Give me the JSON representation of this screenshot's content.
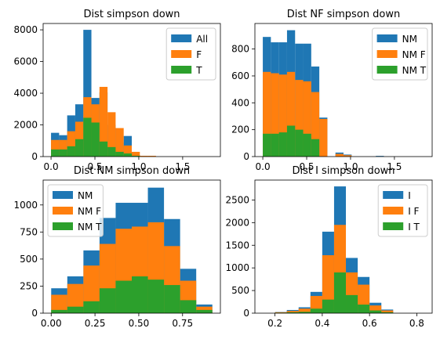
{
  "chart_data": [
    {
      "type": "bar",
      "title": "Dist simpson down",
      "xlim": [
        -0.09,
        1.93
      ],
      "ylim": [
        0,
        8400
      ],
      "xticks": [
        0.0,
        0.5,
        1.0,
        1.5
      ],
      "xtick_labels": [
        "0.0",
        "0.5",
        "1.0",
        "1.5"
      ],
      "yticks": [
        0,
        2000,
        4000,
        6000,
        8000
      ],
      "ytick_labels": [
        "0",
        "2000",
        "4000",
        "6000",
        "8000"
      ],
      "legend_position": "top-right",
      "bin_edges": [
        0.0,
        0.092,
        0.184,
        0.276,
        0.368,
        0.46,
        0.552,
        0.644,
        0.736,
        0.828,
        0.92,
        1.012,
        1.104,
        1.196,
        1.288,
        1.38,
        1.472,
        1.564,
        1.656,
        1.748,
        1.84
      ],
      "series": [
        {
          "name": "All",
          "color": "#1f77b4",
          "values": [
            1500,
            1350,
            2600,
            3300,
            8000,
            3700,
            4050,
            2000,
            900,
            1300,
            100,
            0,
            0,
            0,
            0,
            0,
            0,
            0,
            0,
            0
          ]
        },
        {
          "name": "F",
          "color": "#ff7f0e",
          "values": [
            1050,
            1050,
            1600,
            2200,
            3750,
            3300,
            4400,
            2800,
            1800,
            700,
            300,
            50,
            50,
            0,
            0,
            0,
            0,
            0,
            0,
            0
          ]
        },
        {
          "name": "T",
          "color": "#2ca02c",
          "values": [
            450,
            450,
            650,
            1100,
            2450,
            2150,
            950,
            600,
            300,
            200,
            50,
            0,
            0,
            0,
            0,
            0,
            0,
            0,
            0,
            0
          ]
        }
      ]
    },
    {
      "type": "bar",
      "title": "Dist NF simpson down",
      "xlim": [
        -0.09,
        1.93
      ],
      "ylim": [
        0,
        990
      ],
      "xticks": [
        0.0,
        0.5,
        1.0,
        1.5
      ],
      "xtick_labels": [
        "0.0",
        "0.5",
        "1.0",
        "1.5"
      ],
      "yticks": [
        0,
        200,
        400,
        600,
        800
      ],
      "ytick_labels": [
        "0",
        "200",
        "400",
        "600",
        "800"
      ],
      "legend_position": "top-right",
      "bin_edges": [
        0.0,
        0.092,
        0.184,
        0.276,
        0.368,
        0.46,
        0.552,
        0.644,
        0.736,
        0.828,
        0.92,
        1.012,
        1.104,
        1.196,
        1.288,
        1.38,
        1.472,
        1.564,
        1.656,
        1.748,
        1.84
      ],
      "series": [
        {
          "name": "NM",
          "color": "#1f77b4",
          "values": [
            890,
            850,
            850,
            940,
            840,
            840,
            670,
            290,
            0,
            30,
            15,
            0,
            0,
            0,
            5,
            0,
            0,
            0,
            0,
            0
          ]
        },
        {
          "name": "NM F",
          "color": "#ff7f0e",
          "values": [
            630,
            620,
            610,
            630,
            570,
            560,
            480,
            280,
            0,
            20,
            10,
            0,
            0,
            0,
            0,
            0,
            0,
            0,
            0,
            0
          ]
        },
        {
          "name": "NM T",
          "color": "#2ca02c",
          "values": [
            170,
            170,
            180,
            230,
            200,
            170,
            130,
            0,
            0,
            0,
            0,
            0,
            0,
            0,
            0,
            0,
            0,
            0,
            0,
            0
          ]
        }
      ]
    },
    {
      "type": "bar",
      "title": "Dist NM simpson down",
      "xlim": [
        -0.046,
        0.966
      ],
      "ylim": [
        0,
        1230
      ],
      "xticks": [
        0.0,
        0.25,
        0.5,
        0.75
      ],
      "xtick_labels": [
        "0.00",
        "0.25",
        "0.50",
        "0.75"
      ],
      "yticks": [
        0,
        250,
        500,
        750,
        1000
      ],
      "ytick_labels": [
        "0",
        "250",
        "500",
        "750",
        "1000"
      ],
      "legend_position": "top-left",
      "bin_edges": [
        0.0,
        0.092,
        0.184,
        0.276,
        0.368,
        0.46,
        0.552,
        0.644,
        0.736,
        0.828,
        0.92
      ],
      "series": [
        {
          "name": "NM",
          "color": "#1f77b4",
          "values": [
            230,
            340,
            580,
            880,
            1020,
            1020,
            1160,
            870,
            410,
            80
          ]
        },
        {
          "name": "NM F",
          "color": "#ff7f0e",
          "values": [
            170,
            270,
            440,
            640,
            780,
            800,
            840,
            620,
            300,
            60
          ]
        },
        {
          "name": "NM T",
          "color": "#2ca02c",
          "values": [
            30,
            60,
            110,
            230,
            300,
            340,
            310,
            260,
            120,
            30
          ]
        }
      ]
    },
    {
      "type": "bar",
      "title": "Dist I simpson down",
      "xlim": [
        0.115,
        0.865
      ],
      "ylim": [
        0,
        2940
      ],
      "xticks": [
        0.2,
        0.4,
        0.6,
        0.8
      ],
      "xtick_labels": [
        "0.2",
        "0.4",
        "0.6",
        "0.8"
      ],
      "yticks": [
        0,
        500,
        1000,
        1500,
        2000,
        2500
      ],
      "ytick_labels": [
        "0",
        "500",
        "1000",
        "1500",
        "2000",
        "2500"
      ],
      "legend_position": "top-right",
      "bin_edges": [
        0.15,
        0.2,
        0.25,
        0.3,
        0.35,
        0.4,
        0.45,
        0.5,
        0.55,
        0.6,
        0.65,
        0.7,
        0.75,
        0.8
      ],
      "series": [
        {
          "name": "I",
          "color": "#1f77b4",
          "values": [
            0,
            25,
            70,
            130,
            470,
            1800,
            2800,
            1220,
            800,
            230,
            80,
            0,
            0
          ]
        },
        {
          "name": "I F",
          "color": "#ff7f0e",
          "values": [
            0,
            20,
            50,
            100,
            380,
            1280,
            1950,
            900,
            630,
            170,
            60,
            0,
            0
          ]
        },
        {
          "name": "I T",
          "color": "#2ca02c",
          "values": [
            0,
            10,
            20,
            30,
            100,
            300,
            900,
            400,
            190,
            60,
            20,
            0,
            0
          ]
        }
      ]
    }
  ]
}
